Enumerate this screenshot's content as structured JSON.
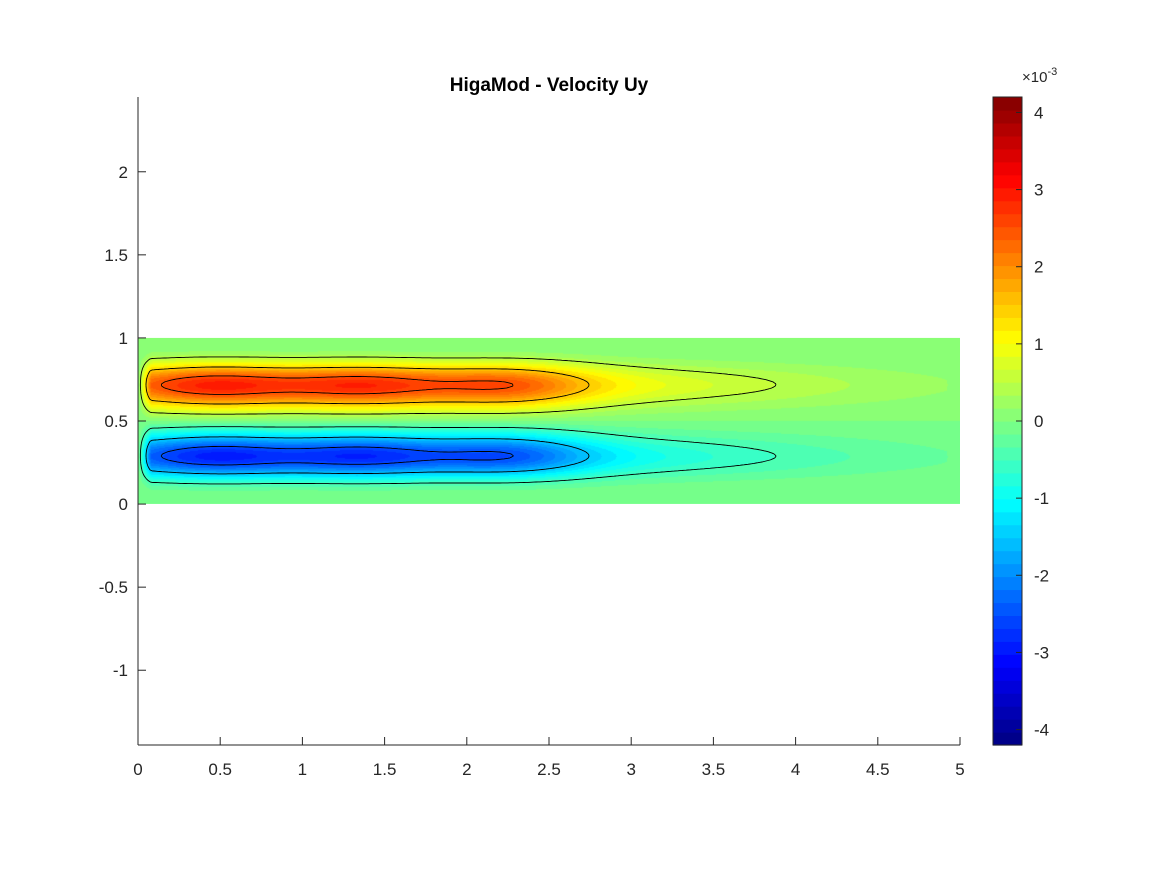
{
  "chart_data": {
    "type": "heatmap",
    "subtype": "filled-contour",
    "title": "HigaMod - Velocity Uy",
    "xlabel": "",
    "ylabel": "",
    "xlim": [
      0,
      5
    ],
    "ylim": [
      -1.45,
      2.45
    ],
    "x_ticks": [
      "0",
      "0.5",
      "1",
      "1.5",
      "2",
      "2.5",
      "3",
      "3.5",
      "4",
      "4.5",
      "5"
    ],
    "y_ticks": [
      "-1",
      "-0.5",
      "0",
      "0.5",
      "1",
      "1.5",
      "2"
    ],
    "domain": {
      "x": [
        0,
        5
      ],
      "y": [
        0,
        1
      ]
    },
    "colormap": "jet",
    "colorbar": {
      "limits": [
        -0.0042,
        0.0042
      ],
      "ticks": [
        "-4",
        "-3",
        "-2",
        "-1",
        "0",
        "1",
        "2",
        "3",
        "4"
      ],
      "exponent_label": "×10",
      "exponent_power": "-3",
      "placement": "right"
    },
    "field_peaks": [
      {
        "x": 0.47,
        "y": 0.78,
        "value": 0.0042
      },
      {
        "x": 1.37,
        "y": 0.78,
        "value": 0.0035
      },
      {
        "x": 2.25,
        "y": 0.78,
        "value": 0.0031
      },
      {
        "x": 0.47,
        "y": 0.22,
        "value": -0.0042
      },
      {
        "x": 1.37,
        "y": 0.22,
        "value": -0.0035
      },
      {
        "x": 2.25,
        "y": 0.22,
        "value": -0.0031
      }
    ],
    "contour_levels": [
      -0.0035,
      -0.0025,
      -0.0015,
      -0.0005,
      0.0005,
      0.0015,
      0.0025,
      0.0035
    ],
    "grid": false
  }
}
